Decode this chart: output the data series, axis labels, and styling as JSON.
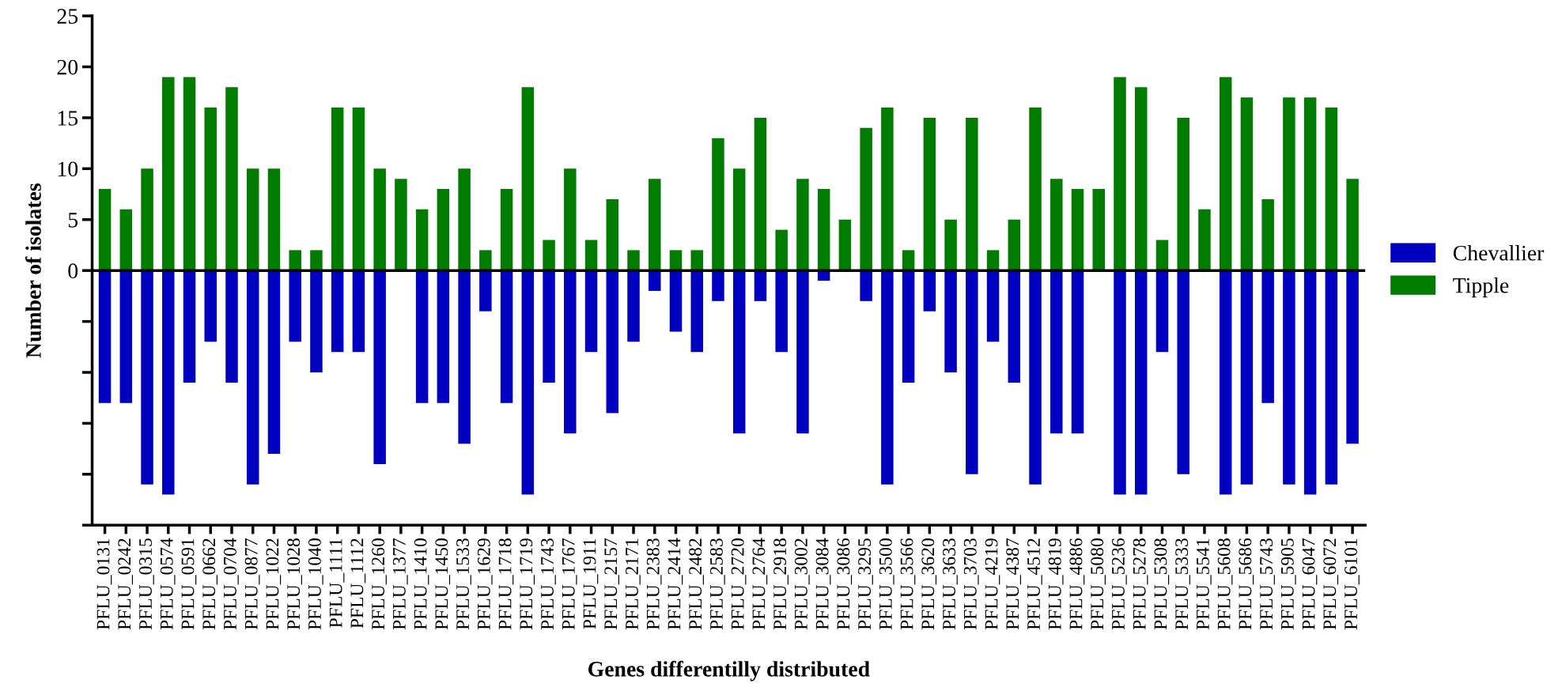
{
  "chart_data": {
    "type": "bar",
    "xlabel": "Genes differentilly distributed",
    "ylabel": "Number of isolates",
    "categories": [
      "PFLU_0131",
      "PFLU_0242",
      "PFLU_0315",
      "PFLU_0574",
      "PFLU_0591",
      "PFLU_0662",
      "PFLU_0704",
      "PFLU_0877",
      "PFLU_1022",
      "PFLU_1028",
      "PFLU_1040",
      "PFLU_1111",
      "PFLU_1112",
      "PFLU_1260",
      "PFLU_1377",
      "PFLU_1410",
      "PFLU_1450",
      "PFLU_1533",
      "PFLU_1629",
      "PFLU_1718",
      "PFLU_1719",
      "PFLU_1743",
      "PFLU_1767",
      "PFLU_1911",
      "PFLU_2157",
      "PFLU_2171",
      "PFLU_2383",
      "PFLU_2414",
      "PFLU_2482",
      "PFLU_2583",
      "PFLU_2720",
      "PFLU_2764",
      "PFLU_2918",
      "PFLU_3002",
      "PFLU_3084",
      "PFLU_3086",
      "PFLU_3295",
      "PFLU_3500",
      "PFLU_3566",
      "PFLU_3620",
      "PFLU_3633",
      "PFLU_3703",
      "PFLU_4219",
      "PFLU_4387",
      "PFLU_4512",
      "PFLU_4819",
      "PFLU_4886",
      "PFLU_5080",
      "PFLU_5236",
      "PFLU_5278",
      "PFLU_5308",
      "PFLU_5333",
      "PFLU_5541",
      "PFLU_5608",
      "PFLU_5686",
      "PFLU_5743",
      "PFLU_5905",
      "PFLU_6047",
      "PFLU_6072",
      "PFLU_6101"
    ],
    "series": [
      {
        "name": "Chevallier",
        "color": "#0000c0",
        "values": [
          -13,
          -13,
          -21,
          -22,
          -11,
          -7,
          -11,
          -21,
          -18,
          -7,
          -10,
          -8,
          -8,
          -19,
          0,
          -13,
          -13,
          -17,
          -4,
          -13,
          -22,
          -11,
          -16,
          -8,
          -14,
          -7,
          -2,
          -6,
          -8,
          -3,
          -16,
          -3,
          -8,
          -16,
          -1,
          0,
          -3,
          -21,
          -11,
          -4,
          -10,
          -20,
          -7,
          -11,
          -21,
          -16,
          -16,
          0,
          -22,
          -22,
          -8,
          -20,
          0,
          -22,
          -21,
          -13,
          -21,
          -22,
          -21,
          -17
        ]
      },
      {
        "name": "Tipple",
        "color": "#007c00",
        "values": [
          8,
          6,
          10,
          19,
          19,
          16,
          18,
          10,
          10,
          2,
          2,
          16,
          16,
          10,
          9,
          6,
          8,
          10,
          2,
          8,
          18,
          3,
          10,
          3,
          7,
          2,
          9,
          2,
          2,
          13,
          10,
          15,
          4,
          9,
          8,
          5,
          14,
          16,
          2,
          15,
          5,
          15,
          2,
          5,
          16,
          9,
          8,
          8,
          19,
          18,
          3,
          15,
          6,
          19,
          17,
          7,
          17,
          17,
          16,
          9
        ]
      }
    ],
    "ylim": [
      -25,
      25
    ],
    "yticks": [
      {
        "value": -25,
        "label": null
      },
      {
        "value": -20,
        "label": null
      },
      {
        "value": -15,
        "label": null
      },
      {
        "value": -10,
        "label": null
      },
      {
        "value": -5,
        "label": null
      },
      0,
      5,
      10,
      15,
      20,
      25
    ],
    "ref_lines": [
      {
        "axis": "y",
        "value": 0,
        "color": "#000000"
      }
    ],
    "grid": false,
    "legend": "right",
    "stacked": true
  }
}
